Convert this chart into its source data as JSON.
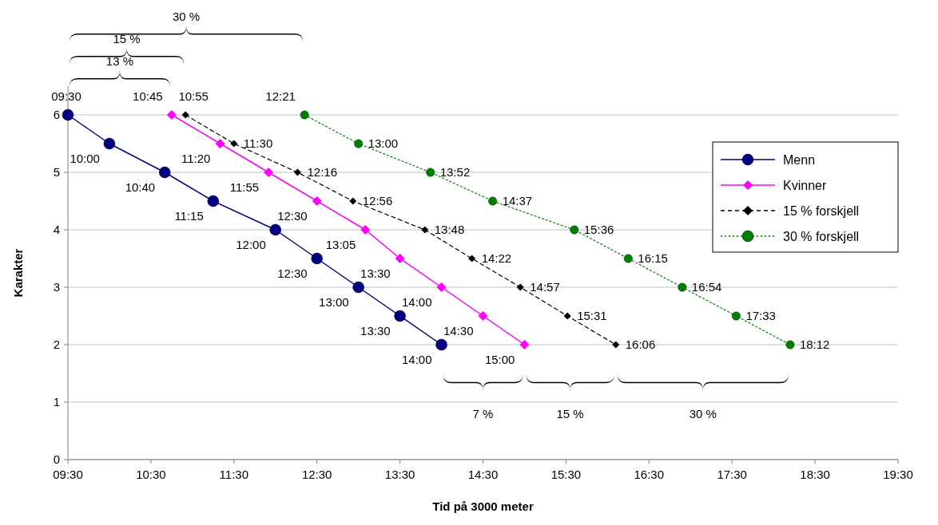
{
  "chart_data": {
    "type": "line",
    "xlabel": "Tid på 3000 meter",
    "ylabel": "Karakter",
    "xlim": [
      9.5,
      19.5
    ],
    "xticks": [
      {
        "value": 9.5,
        "label": "09:30"
      },
      {
        "value": 10.5,
        "label": "10:30"
      },
      {
        "value": 11.5,
        "label": "11:30"
      },
      {
        "value": 12.5,
        "label": "12:30"
      },
      {
        "value": 13.5,
        "label": "13:30"
      },
      {
        "value": 14.5,
        "label": "14:30"
      },
      {
        "value": 15.5,
        "label": "15:30"
      },
      {
        "value": 16.5,
        "label": "16:30"
      },
      {
        "value": 17.5,
        "label": "17:30"
      },
      {
        "value": 18.5,
        "label": "18:30"
      },
      {
        "value": 19.5,
        "label": "19:30"
      }
    ],
    "ylim": [
      0,
      6.5
    ],
    "yticks": [
      0,
      1,
      2,
      3,
      4,
      5,
      6
    ],
    "grid": "y",
    "legend": "top right",
    "series": [
      {
        "name": "Menn",
        "color": "#000080",
        "marker": "circle",
        "line_style": "solid",
        "x": [
          9.5,
          10,
          10.6667,
          11.25,
          12,
          12.5,
          13,
          13.5,
          14
        ],
        "values": [
          6,
          5.5,
          5,
          4.5,
          4,
          3.5,
          3,
          2.5,
          2
        ]
      },
      {
        "name": "Kvinner",
        "color": "#ff00ff",
        "marker": "diamond",
        "line_style": "solid",
        "x": [
          10.75,
          11.3333,
          11.9167,
          12.5,
          13.0833,
          13.5,
          14,
          14.5,
          15
        ],
        "values": [
          6,
          5.5,
          5,
          4.5,
          4,
          3.5,
          3,
          2.5,
          2
        ]
      },
      {
        "name": "15 % forskjell",
        "color": "#000000",
        "marker": "diamond",
        "line_style": "dashed",
        "x": [
          10.9167,
          11.5,
          12.2667,
          12.9333,
          13.8,
          14.3667,
          14.95,
          15.5167,
          16.1
        ],
        "values": [
          6,
          5.5,
          5,
          4.5,
          4,
          3.5,
          3,
          2.5,
          2
        ]
      },
      {
        "name": "30 % forskjell",
        "color": "#008000",
        "marker": "circle",
        "line_style": "dotted",
        "x": [
          12.35,
          13,
          13.8667,
          14.6167,
          15.6,
          16.25,
          16.9,
          17.55,
          18.2
        ],
        "values": [
          6,
          5.5,
          5,
          4.5,
          4,
          3.5,
          3,
          2.5,
          2
        ]
      }
    ],
    "annotations": [
      "13 %",
      "15 %",
      "30 %",
      "7 %",
      "15 %",
      "30 %",
      {
        "text": "09:30",
        "x": 9.5,
        "y": 6
      },
      {
        "text": "10:00",
        "x": 10,
        "y": 5.5
      },
      {
        "text": "10:40",
        "x": 10.6667,
        "y": 5
      },
      {
        "text": "11:15",
        "x": 11.25,
        "y": 4.5
      },
      {
        "text": "12:00",
        "x": 12,
        "y": 4
      },
      {
        "text": "12:30",
        "x": 12.5,
        "y": 3.5
      },
      {
        "text": "13:00",
        "x": 13,
        "y": 3
      },
      {
        "text": "13:30",
        "x": 13.5,
        "y": 2.5
      },
      {
        "text": "14:00",
        "x": 14,
        "y": 2
      },
      {
        "text": "10:45",
        "x": 10.75,
        "y": 6
      },
      {
        "text": "11:20",
        "x": 11.3333,
        "y": 5.5
      },
      {
        "text": "11:55",
        "x": 11.9167,
        "y": 5
      },
      {
        "text": "12:30",
        "x": 12.5,
        "y": 4.5
      },
      {
        "text": "13:05",
        "x": 13.0833,
        "y": 4
      },
      {
        "text": "13:30",
        "x": 13.5,
        "y": 3.5
      },
      {
        "text": "14:00",
        "x": 14,
        "y": 3
      },
      {
        "text": "14:30",
        "x": 14.5,
        "y": 2.5
      },
      {
        "text": "15:00",
        "x": 15,
        "y": 2
      },
      {
        "text": "10:55",
        "x": 10.9167,
        "y": 6
      },
      {
        "text": "11:30",
        "x": 11.5,
        "y": 5.5
      },
      {
        "text": "12:16",
        "x": 12.2667,
        "y": 5
      },
      {
        "text": "12:56",
        "x": 12.9333,
        "y": 4.5
      },
      {
        "text": "13:48",
        "x": 13.8,
        "y": 4
      },
      {
        "text": "14:22",
        "x": 14.3667,
        "y": 3.5
      },
      {
        "text": "14:57",
        "x": 14.95,
        "y": 3
      },
      {
        "text": "15:31",
        "x": 15.5167,
        "y": 2.5
      },
      {
        "text": "16:06",
        "x": 16.1,
        "y": 2
      },
      {
        "text": "12:21",
        "x": 12.35,
        "y": 6
      },
      {
        "text": "13:00",
        "x": 13,
        "y": 5.5
      },
      {
        "text": "13:52",
        "x": 13.8667,
        "y": 5
      },
      {
        "text": "14:37",
        "x": 14.6167,
        "y": 4.5
      },
      {
        "text": "15:36",
        "x": 15.6,
        "y": 4
      },
      {
        "text": "16:15",
        "x": 16.25,
        "y": 3.5
      },
      {
        "text": "16:54",
        "x": 16.9,
        "y": 3
      },
      {
        "text": "17:33",
        "x": 17.55,
        "y": 2.5
      },
      {
        "text": "18:12",
        "x": 18.2,
        "y": 2
      }
    ]
  }
}
